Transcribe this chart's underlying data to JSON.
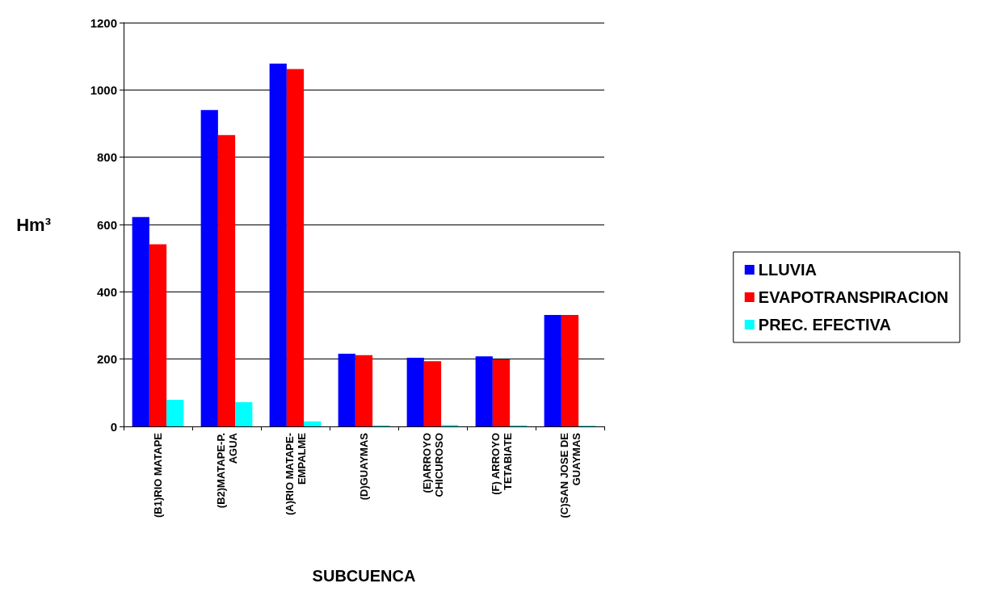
{
  "chart_data": {
    "type": "bar",
    "xlabel": "SUBCUENCA",
    "ylabel": "Hm³",
    "categories": [
      "(B1)RIO MATAPE",
      "(B2)MATAPE-P. AGUA",
      "(A)RIO MATAPE-EMPALME",
      "(D)GUAYMAS",
      "(E)ARROYO CHICUROSO",
      "(F) ARROYO TETABIATE",
      "(C)SAN JOSE DE GUAYMAS"
    ],
    "series": [
      {
        "name": "LLUVIA",
        "color": "#0000ff",
        "values": [
          622,
          940,
          1078,
          216,
          204,
          208,
          331
        ]
      },
      {
        "name": "EVAPOTRANSPIRACION",
        "color": "#ff0000",
        "values": [
          541,
          866,
          1062,
          212,
          194,
          199,
          331
        ]
      },
      {
        "name": "PREC. EFECTIVA",
        "color": "#00ffff",
        "values": [
          79,
          72,
          15,
          3,
          4,
          3,
          2
        ]
      }
    ],
    "ylim": [
      0,
      1200
    ],
    "yticks": [
      0,
      200,
      400,
      600,
      800,
      1000,
      1200
    ],
    "grid": "y",
    "legend": "right"
  }
}
